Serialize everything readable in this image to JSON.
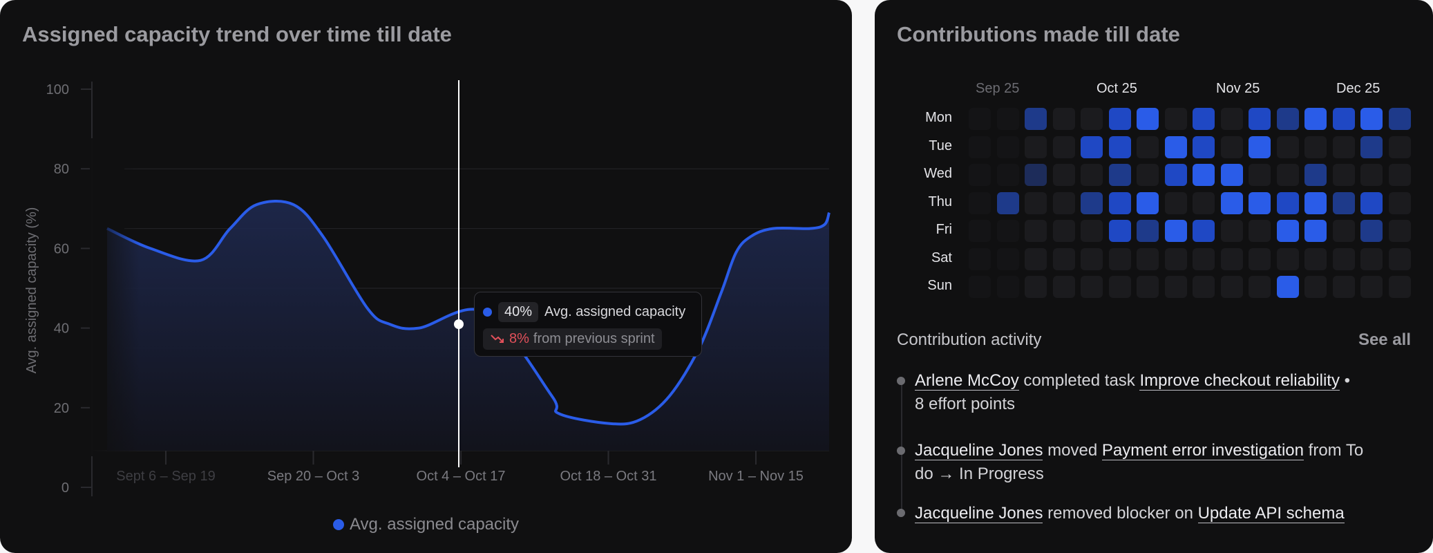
{
  "left_card": {
    "title": "Assigned capacity trend over time till date",
    "legend_label": "Avg. assigned capacity",
    "tooltip": {
      "value": "40%",
      "label": "Avg. assigned capacity",
      "change_icon": "trend-down-icon",
      "change_pct": "8%",
      "change_text": "from previous sprint"
    }
  },
  "chart_data": {
    "type": "area",
    "title": "Assigned capacity trend over time till date",
    "ylabel": "Avg. assigned capacity (%)",
    "ylim": [
      0,
      100
    ],
    "yticks": [
      0,
      20,
      40,
      60,
      80,
      100
    ],
    "xticks": [
      "Sept 6 – Sep 19",
      "Sep 20 – Oct 3",
      "Oct 4 – Oct 17",
      "Oct 18 – Oct 31",
      "Nov 1 – Nov 15"
    ],
    "series": [
      {
        "name": "Avg. assigned capacity",
        "color": "#2a5ce8",
        "points": [
          [
            0.0,
            65
          ],
          [
            0.28,
            60
          ],
          [
            0.62,
            57
          ],
          [
            0.82,
            65
          ],
          [
            1.0,
            71
          ],
          [
            1.25,
            71
          ],
          [
            1.45,
            63
          ],
          [
            1.75,
            45
          ],
          [
            1.9,
            41
          ],
          [
            2.1,
            40
          ],
          [
            2.55,
            44
          ],
          [
            3.0,
            23
          ],
          [
            3.05,
            18.5
          ],
          [
            3.4,
            16
          ],
          [
            3.6,
            17
          ],
          [
            3.8,
            23
          ],
          [
            4.0,
            35
          ],
          [
            4.15,
            49
          ],
          [
            4.25,
            59
          ],
          [
            4.35,
            63
          ],
          [
            4.5,
            65
          ],
          [
            4.75,
            65
          ],
          [
            4.85,
            66
          ],
          [
            4.93,
            69
          ]
        ]
      }
    ],
    "highlight": {
      "x": 2.0,
      "value": 40
    },
    "grid": true
  },
  "right_card": {
    "title": "Contributions made till date",
    "months": [
      "Sep 25",
      "Oct 25",
      "Nov 25",
      "Dec 25"
    ],
    "days": [
      "Mon",
      "Tue",
      "Wed",
      "Thu",
      "Fri",
      "Sat",
      "Sun"
    ],
    "levels": [
      [
        0,
        0,
        3,
        0,
        0,
        4,
        5,
        0,
        4,
        0,
        4,
        3,
        5,
        4,
        5,
        3
      ],
      [
        0,
        0,
        0,
        0,
        4,
        4,
        0,
        5,
        4,
        0,
        5,
        0,
        0,
        0,
        3,
        0
      ],
      [
        0,
        0,
        2,
        0,
        0,
        3,
        0,
        4,
        5,
        5,
        0,
        0,
        3,
        0,
        0,
        0
      ],
      [
        0,
        3,
        0,
        0,
        3,
        4,
        5,
        0,
        0,
        5,
        5,
        4,
        5,
        3,
        4,
        0
      ],
      [
        0,
        0,
        0,
        0,
        0,
        4,
        3,
        5,
        4,
        0,
        0,
        5,
        5,
        0,
        3,
        0
      ],
      [
        0,
        0,
        0,
        0,
        0,
        0,
        0,
        0,
        0,
        0,
        0,
        0,
        0,
        0,
        0,
        0
      ],
      [
        0,
        0,
        0,
        0,
        0,
        0,
        0,
        0,
        0,
        0,
        0,
        5,
        0,
        0,
        0,
        0
      ]
    ],
    "level_colors": [
      "#1b1b1e",
      "#1d2240",
      "#1d2c5a",
      "#1e3a8a",
      "#1f48c4",
      "#2a5ce8"
    ],
    "activity_heading": "Contribution activity",
    "see_all": "See all",
    "activity": [
      {
        "user": "Arlene McCoy",
        "action": "completed task",
        "target": "Improve checkout reliability",
        "suffix": "•",
        "line2": "8 effort points"
      },
      {
        "user": "Jacqueline Jones",
        "action": "moved",
        "target": "Payment error investigation",
        "suffix": "from To",
        "line2": "do → In Progress"
      },
      {
        "user": "Jacqueline Jones",
        "action": "removed blocker on",
        "target": "Update API schema",
        "suffix": "",
        "line2": ""
      }
    ]
  }
}
